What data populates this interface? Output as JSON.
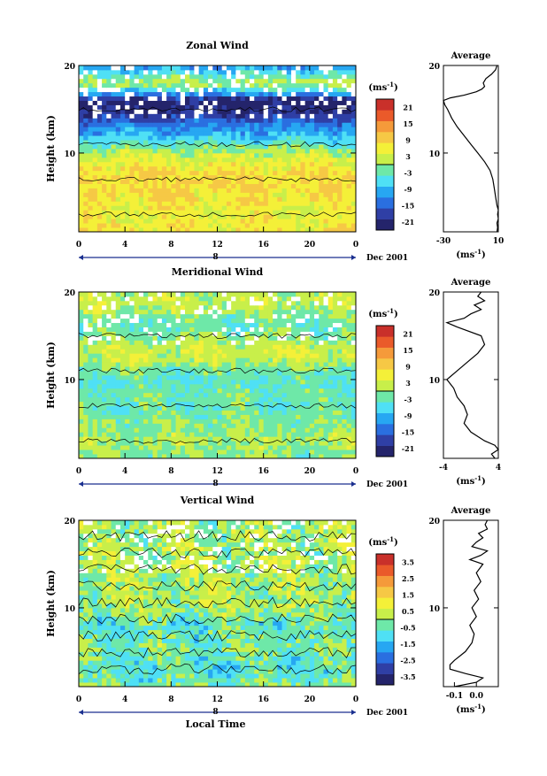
{
  "figure": {
    "date_label": "Dec 2001",
    "day_label": "8",
    "xlabel": "Local Time",
    "unit_label": "(ms",
    "unit_sup": "-1",
    "unit_close": ")"
  },
  "chart_data": [
    {
      "type": "heatmap",
      "title": "Zonal Wind",
      "ylabel": "Height (km)",
      "xlabel": "",
      "x_ticks": [
        "0",
        "4",
        "8",
        "12",
        "16",
        "20",
        "0"
      ],
      "xlim": [
        0,
        24
      ],
      "y_ticks": [
        "10",
        "20"
      ],
      "ylim": [
        1,
        20
      ],
      "colorbar_ticks": [
        "21",
        "15",
        "9",
        "3",
        "-3",
        "-9",
        "-15",
        "-21"
      ],
      "colorbar_range": [
        -24,
        24
      ],
      "profiles_by_height": [
        {
          "h": 1,
          "v": 7
        },
        {
          "h": 2,
          "v": 6
        },
        {
          "h": 3,
          "v": 5
        },
        {
          "h": 4,
          "v": 6
        },
        {
          "h": 5,
          "v": 7
        },
        {
          "h": 6,
          "v": 8
        },
        {
          "h": 7,
          "v": 8
        },
        {
          "h": 8,
          "v": 7
        },
        {
          "h": 9,
          "v": 5
        },
        {
          "h": 10,
          "v": 2
        },
        {
          "h": 11,
          "v": -3
        },
        {
          "h": 12,
          "v": -8
        },
        {
          "h": 13,
          "v": -12
        },
        {
          "h": 14,
          "v": -17
        },
        {
          "h": 15,
          "v": -21
        },
        {
          "h": 16,
          "v": -23
        },
        {
          "h": 17,
          "v": -8
        },
        {
          "h": 18,
          "v": 2
        },
        {
          "h": 19,
          "v": -4
        },
        {
          "h": 20,
          "v": -12
        }
      ],
      "average": {
        "title": "Average",
        "xlabel": "(ms",
        "x_ticks": [
          "-30",
          "10"
        ],
        "xlim": [
          -30,
          10
        ],
        "y_ticks": [
          "10",
          "20"
        ],
        "ylim": [
          1,
          20
        ],
        "series": {
          "h": [
            1,
            1.5,
            2,
            2.5,
            3,
            3.5,
            4,
            5,
            6,
            7,
            8,
            9,
            10,
            11,
            12,
            13,
            14,
            15,
            15.5,
            16,
            16.3,
            16.6,
            17,
            17.3,
            17.6,
            18,
            18.5,
            19,
            19.5,
            20
          ],
          "v": [
            9,
            9.5,
            9,
            10,
            9.5,
            10,
            9,
            8,
            7,
            6,
            4,
            0,
            -5,
            -10,
            -15,
            -20,
            -24,
            -27,
            -29,
            -30,
            -25,
            -15,
            -6,
            -2,
            0,
            -1,
            1,
            5,
            8,
            9
          ]
        }
      }
    },
    {
      "type": "heatmap",
      "title": "Meridional Wind",
      "ylabel": "Height (km)",
      "xlabel": "",
      "x_ticks": [
        "0",
        "4",
        "8",
        "12",
        "16",
        "20",
        "0"
      ],
      "xlim": [
        0,
        24
      ],
      "y_ticks": [
        "10",
        "20"
      ],
      "ylim": [
        1,
        20
      ],
      "colorbar_ticks": [
        "21",
        "15",
        "9",
        "3",
        "-3",
        "-9",
        "-15",
        "-21"
      ],
      "colorbar_range": [
        -24,
        24
      ],
      "profiles_by_height": [
        {
          "h": 1,
          "v": -1
        },
        {
          "h": 2,
          "v": 0
        },
        {
          "h": 3,
          "v": 1
        },
        {
          "h": 4,
          "v": 0
        },
        {
          "h": 5,
          "v": -1
        },
        {
          "h": 6,
          "v": -2
        },
        {
          "h": 7,
          "v": -3
        },
        {
          "h": 8,
          "v": -2
        },
        {
          "h": 9,
          "v": -3
        },
        {
          "h": 10,
          "v": -4
        },
        {
          "h": 11,
          "v": -2
        },
        {
          "h": 12,
          "v": 1
        },
        {
          "h": 13,
          "v": 3
        },
        {
          "h": 14,
          "v": 2
        },
        {
          "h": 15,
          "v": -1
        },
        {
          "h": 16,
          "v": -3
        },
        {
          "h": 17,
          "v": -2
        },
        {
          "h": 18,
          "v": 1
        },
        {
          "h": 19,
          "v": 3
        },
        {
          "h": 20,
          "v": 1
        }
      ],
      "average": {
        "title": "Average",
        "xlabel": "(ms",
        "x_ticks": [
          "-4",
          "4"
        ],
        "xlim": [
          -4,
          4
        ],
        "y_ticks": [
          "10",
          "20"
        ],
        "ylim": [
          1,
          20
        ],
        "series": {
          "h": [
            1,
            1.5,
            2,
            2.5,
            3,
            4,
            5,
            6,
            7,
            8,
            9,
            10,
            11,
            12,
            13,
            14,
            15,
            16,
            16.5,
            17,
            17.5,
            18,
            18.5,
            19,
            19.5,
            20
          ],
          "v": [
            3.5,
            3,
            4,
            3.5,
            2,
            0,
            -1,
            -0.5,
            -1,
            -2,
            -2.5,
            -3.5,
            -2,
            -0.5,
            1,
            2,
            1.5,
            -2,
            -3.5,
            -1,
            0,
            1.5,
            0.5,
            2,
            1,
            1.5
          ]
        }
      }
    },
    {
      "type": "heatmap",
      "title": "Vertical Wind",
      "ylabel": "Height (km)",
      "xlabel": "Local Time",
      "x_ticks": [
        "0",
        "4",
        "8",
        "12",
        "16",
        "20",
        "0"
      ],
      "xlim": [
        0,
        24
      ],
      "y_ticks": [
        "10",
        "20"
      ],
      "ylim": [
        1,
        20
      ],
      "colorbar_ticks": [
        "3.5",
        "2.5",
        "1.5",
        "0.5",
        "-0.5",
        "-1.5",
        "-2.5",
        "-3.5"
      ],
      "colorbar_range": [
        -4,
        4
      ],
      "profiles_by_height": [
        {
          "h": 1,
          "v": -0.2
        },
        {
          "h": 2,
          "v": -0.6
        },
        {
          "h": 3,
          "v": -0.8
        },
        {
          "h": 4,
          "v": -0.6
        },
        {
          "h": 5,
          "v": -0.4
        },
        {
          "h": 6,
          "v": -0.3
        },
        {
          "h": 7,
          "v": -0.5
        },
        {
          "h": 8,
          "v": -0.6
        },
        {
          "h": 9,
          "v": -0.3
        },
        {
          "h": 10,
          "v": 0.1
        },
        {
          "h": 11,
          "v": 0.2
        },
        {
          "h": 12,
          "v": 0.1
        },
        {
          "h": 13,
          "v": 0.2
        },
        {
          "h": 14,
          "v": 0.1
        },
        {
          "h": 15,
          "v": 0.2
        },
        {
          "h": 16,
          "v": 0.1
        },
        {
          "h": 17,
          "v": 0.2
        },
        {
          "h": 18,
          "v": 0.1
        },
        {
          "h": 19,
          "v": 0.2
        },
        {
          "h": 20,
          "v": 0.1
        }
      ],
      "average": {
        "title": "Average",
        "xlabel": "(ms",
        "x_ticks": [
          "-0.1",
          "0.0"
        ],
        "xlim": [
          -0.15,
          0.1
        ],
        "y_ticks": [
          "10",
          "20"
        ],
        "ylim": [
          1,
          20
        ],
        "series": {
          "h": [
            1,
            1.5,
            2,
            2.5,
            3,
            3.5,
            4,
            5,
            6,
            7,
            8,
            9,
            10,
            11,
            12,
            13,
            14,
            15,
            15.5,
            16,
            16.5,
            17,
            17.5,
            18,
            18.5,
            19,
            19.5,
            20
          ],
          "v": [
            -0.1,
            0.0,
            0.03,
            -0.05,
            -0.12,
            -0.12,
            -0.1,
            -0.05,
            -0.02,
            -0.01,
            -0.03,
            0.0,
            -0.02,
            0.01,
            -0.01,
            0.02,
            0.0,
            0.03,
            -0.03,
            0.02,
            0.05,
            -0.02,
            0.0,
            0.03,
            0.01,
            0.05,
            0.04,
            0.05
          ]
        }
      }
    }
  ]
}
